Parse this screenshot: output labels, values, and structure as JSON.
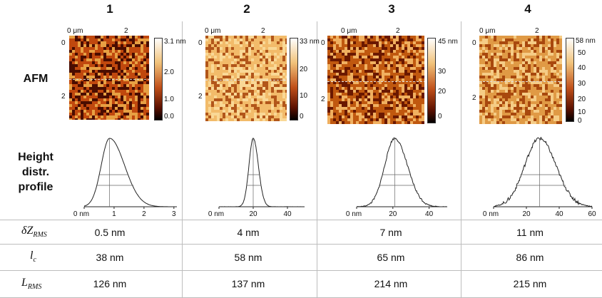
{
  "columns": [
    "1",
    "2",
    "3",
    "4"
  ],
  "row_labels": {
    "afm": "AFM",
    "height": [
      "Height",
      "distr.",
      "profile"
    ]
  },
  "afm_panels": [
    {
      "x_ticks": [
        "0 μm",
        "2"
      ],
      "y_ticks": [
        "0",
        "2"
      ],
      "colorbar_ticks": [
        "3.1 nm",
        "2.0",
        "1.0",
        "0.0"
      ],
      "palette": [
        "#4a0d00",
        "#c0480e",
        "#e7a043"
      ]
    },
    {
      "x_ticks": [
        "0 μm",
        "2"
      ],
      "y_ticks": [
        "0",
        "2"
      ],
      "colorbar_ticks": [
        "33 nm",
        "20",
        "10",
        "0"
      ],
      "palette": [
        "#b2561a",
        "#f2bb6a",
        "#f9d896"
      ]
    },
    {
      "x_ticks": [
        "0 μm",
        "2"
      ],
      "y_ticks": [
        "0",
        "2"
      ],
      "colorbar_ticks": [
        "45 nm",
        "30",
        "20",
        "0"
      ],
      "palette": [
        "#6a1800",
        "#c0580f",
        "#f0b060"
      ]
    },
    {
      "x_ticks": [
        "0 μm",
        "2"
      ],
      "y_ticks": [
        "0",
        "2"
      ],
      "colorbar_ticks": [
        "58 nm",
        "50",
        "40",
        "30",
        "20",
        "10",
        "0"
      ],
      "palette": [
        "#a8480e",
        "#e09a45",
        "#f5cc86"
      ]
    }
  ],
  "height_profiles": [
    {
      "x_ticks": [
        "0 nm",
        "1",
        "2",
        "3"
      ],
      "peak": 0.85,
      "x_max": 3.1,
      "width_left": 0.28,
      "width_right": 0.5,
      "noise": 0
    },
    {
      "x_ticks": [
        "0 nm",
        "20",
        "40"
      ],
      "peak": 20,
      "x_max": 50,
      "width_left": 2.5,
      "width_right": 3.0,
      "noise": 0.01
    },
    {
      "x_ticks": [
        "0 nm",
        "20",
        "40"
      ],
      "peak": 21,
      "x_max": 50,
      "width_left": 5.5,
      "width_right": 7.0,
      "noise": 0.03
    },
    {
      "x_ticks": [
        "0 nm",
        "20",
        "40",
        "60"
      ],
      "peak": 28,
      "x_max": 60,
      "width_left": 9.0,
      "width_right": 10.0,
      "noise": 0.05
    }
  ],
  "parameters": [
    {
      "symbol": "δZ",
      "sub": "RMS",
      "values": [
        "0.5 nm",
        "4 nm",
        "7 nm",
        "11 nm"
      ]
    },
    {
      "symbol": "l",
      "sub": "c",
      "values": [
        "38 nm",
        "58 nm",
        "65 nm",
        "86 nm"
      ]
    },
    {
      "symbol": "L",
      "sub": "RMS",
      "values": [
        "126 nm",
        "137 nm",
        "214 nm",
        "215 nm"
      ]
    }
  ]
}
